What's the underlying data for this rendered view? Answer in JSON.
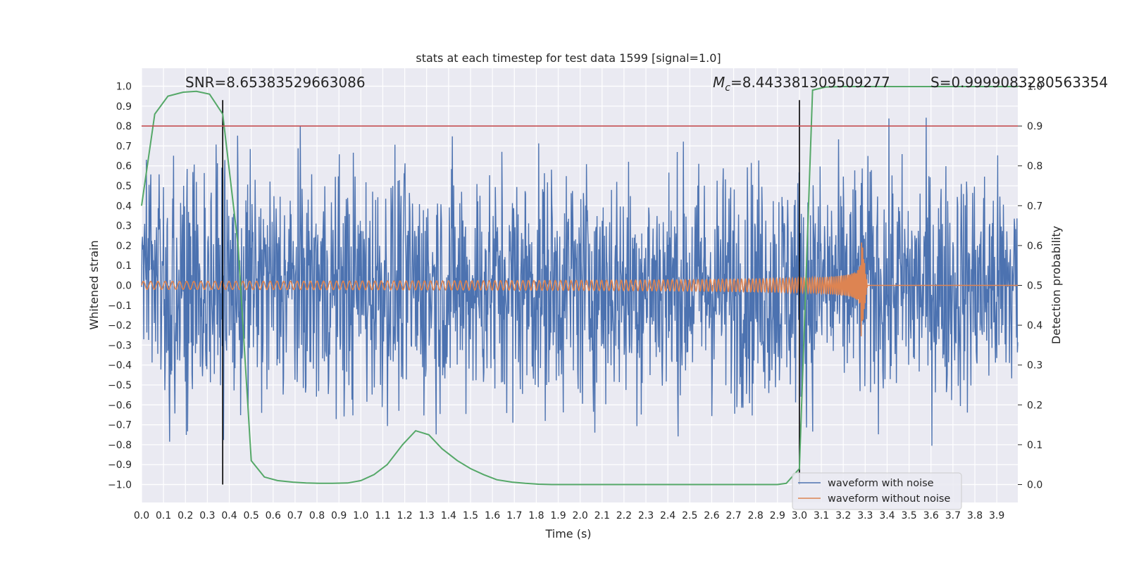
{
  "chart_data": {
    "type": "line",
    "title": "stats at each timestep for test data 1599 [signal=1.0]",
    "xlabel": "Time (s)",
    "ylabel": "Whitened strain",
    "y2label": "Detection probability",
    "xlim": [
      0.0,
      3.996
    ],
    "ylim": [
      -1.09,
      1.09
    ],
    "y2lim": [
      -0.045,
      1.045
    ],
    "grid": true,
    "legend_position": "lower-right",
    "x_ticks": [
      "0.0",
      "0.1",
      "0.2",
      "0.3",
      "0.4",
      "0.5",
      "0.6",
      "0.7",
      "0.8",
      "0.9",
      "1.0",
      "1.1",
      "1.2",
      "1.3",
      "1.4",
      "1.5",
      "1.6",
      "1.7",
      "1.8",
      "1.9",
      "2.0",
      "2.1",
      "2.2",
      "2.3",
      "2.4",
      "2.5",
      "2.6",
      "2.7",
      "2.8",
      "2.9",
      "3.0",
      "3.1",
      "3.2",
      "3.3",
      "3.4",
      "3.5",
      "3.6",
      "3.7",
      "3.8",
      "3.9"
    ],
    "y_ticks": [
      "−1.0",
      "−0.9",
      "−0.8",
      "−0.7",
      "−0.6",
      "−0.5",
      "−0.4",
      "−0.3",
      "−0.2",
      "−0.1",
      "0.0",
      "0.1",
      "0.2",
      "0.3",
      "0.4",
      "0.5",
      "0.6",
      "0.7",
      "0.8",
      "0.9",
      "1.0"
    ],
    "y2_ticks": [
      "0.0",
      "0.1",
      "0.2",
      "0.3",
      "0.4",
      "0.5",
      "0.6",
      "0.7",
      "0.8",
      "0.9",
      "1.0"
    ],
    "annotations": {
      "snr": "SNR=8.65383529663086",
      "mc_symbol": "M",
      "mc_subscript": "c",
      "mc_value": "=8.443381309509277",
      "s": "S=0.9999083280563354"
    },
    "vertical_lines_x": [
      0.37,
      3.0
    ],
    "threshold_probability": 0.9,
    "series": [
      {
        "name": "waveform with noise",
        "color": "#4c72b0",
        "axis": "left",
        "kind": "noise",
        "amplitude_typical": 0.35,
        "range": [
          -1.0,
          0.94
        ]
      },
      {
        "name": "waveform without noise",
        "color": "#dd8452",
        "axis": "left",
        "kind": "chirp",
        "start_amplitude": 0.02,
        "peak_amplitude": 0.27,
        "merger_time": 3.28,
        "start_frequency": 30,
        "end_frequency": 220
      },
      {
        "color": "#55a868",
        "axis": "right",
        "x": [
          0.0,
          0.06,
          0.12,
          0.19,
          0.25,
          0.31,
          0.37,
          0.44,
          0.5,
          0.56,
          0.62,
          0.69,
          0.75,
          0.81,
          0.87,
          0.94,
          1.0,
          1.06,
          1.12,
          1.19,
          1.25,
          1.31,
          1.37,
          1.44,
          1.5,
          1.56,
          1.62,
          1.69,
          1.75,
          1.81,
          1.87,
          1.94,
          2.0,
          2.5,
          2.9,
          2.94,
          3.0,
          3.06,
          3.12,
          3.2,
          3.5,
          3.9,
          3.996
        ],
        "values": [
          0.7,
          0.93,
          0.975,
          0.985,
          0.987,
          0.98,
          0.93,
          0.6,
          0.06,
          0.019,
          0.01,
          0.006,
          0.004,
          0.003,
          0.003,
          0.004,
          0.01,
          0.025,
          0.05,
          0.1,
          0.135,
          0.125,
          0.09,
          0.06,
          0.04,
          0.025,
          0.012,
          0.006,
          0.003,
          0.001,
          0.0,
          0.0,
          0.0,
          0.0,
          0.0,
          0.003,
          0.04,
          0.99,
          0.998,
          0.999,
          0.999,
          0.999,
          0.999
        ]
      },
      {
        "color": "#c44e52",
        "axis": "right",
        "kind": "hline",
        "value": 0.9
      }
    ]
  }
}
